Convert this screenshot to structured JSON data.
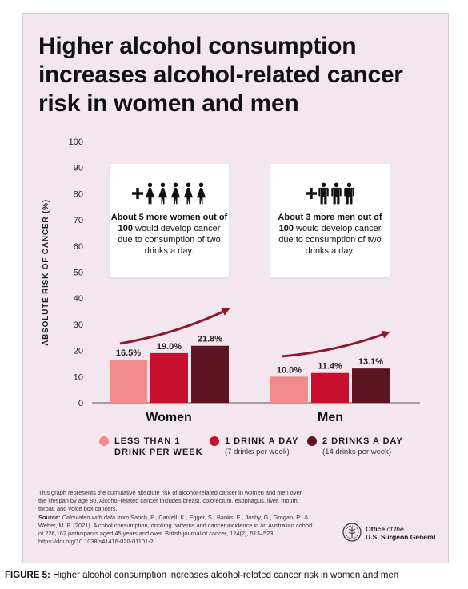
{
  "title": "Higher alcohol consumption increases alcohol-related cancer risk in women and men",
  "colors": {
    "background": "#f3e6ee",
    "less_than_1": "#f28b8b",
    "one_drink": "#c8102e",
    "two_drinks": "#5c1322",
    "arrow": "#8b1a2b"
  },
  "chart_data": {
    "type": "bar",
    "categories": [
      "Women",
      "Men"
    ],
    "series": [
      {
        "name": "LESS THAN 1 DRINK PER WEEK",
        "values": [
          16.5,
          10.0
        ],
        "labels": [
          "16.5%",
          "10.0%"
        ]
      },
      {
        "name": "1 DRINK A DAY",
        "values": [
          19.0,
          11.4
        ],
        "labels": [
          "19.0%",
          "11.4%"
        ]
      },
      {
        "name": "2 DRINKS A DAY",
        "values": [
          21.8,
          13.1
        ],
        "labels": [
          "21.8%",
          "13.1%"
        ]
      }
    ],
    "ylabel": "ABSOLUTE RISK OF CANCER (%)",
    "ylim": [
      0,
      100
    ],
    "yticks": [
      "0",
      "10",
      "20",
      "30",
      "40",
      "50",
      "60",
      "70",
      "80",
      "90",
      "100"
    ],
    "grid": false
  },
  "callouts": {
    "women": {
      "bold": "About 5 more women out of 100",
      "rest": " would develop cancer due to consumption of two drinks a day.",
      "icon_count": 5,
      "icon": "woman-icon"
    },
    "men": {
      "bold": "About 3 more men out of 100",
      "rest": " would develop cancer due to consumption of two drinks a day.",
      "icon_count": 3,
      "icon": "man-icon"
    }
  },
  "legend": [
    {
      "label": "LESS THAN 1 DRINK PER WEEK",
      "sub": ""
    },
    {
      "label": "1 DRINK A DAY",
      "sub": "(7 drinks per week)"
    },
    {
      "label": "2 DRINKS A DAY",
      "sub": "(14 drinks per week)"
    }
  ],
  "footnote": "This graph represents the cumulative absolute risk of alcohol-related cancer in women and men over the lifespan by age 80. Alcohol-related cancer includes breast, colorectum, esophagus, liver, mouth, throat, and voice box cancers.",
  "source": {
    "label": "Source:",
    "calc": "Calculated with data from",
    "rest": " Sarich, P., Canfell, K., Egger, S., Banks, E., Joshy, G., Grogan, P., & Weber, M. F. (2021). Alcohol consumption, drinking patterns and cancer incidence in an Australian cohort of 226,162 participants aged 45 years and over. British journal of cancer, 124(2), 513–523. https://doi.org/10.1038/s41416-020-01101-2"
  },
  "office": {
    "line1": "Office",
    "of_the": "of the",
    "line2": "U.S. Surgeon General"
  },
  "caption": {
    "label": "FIGURE 5:",
    "text": " Higher alcohol consumption increases alcohol-related cancer risk in women and men"
  }
}
